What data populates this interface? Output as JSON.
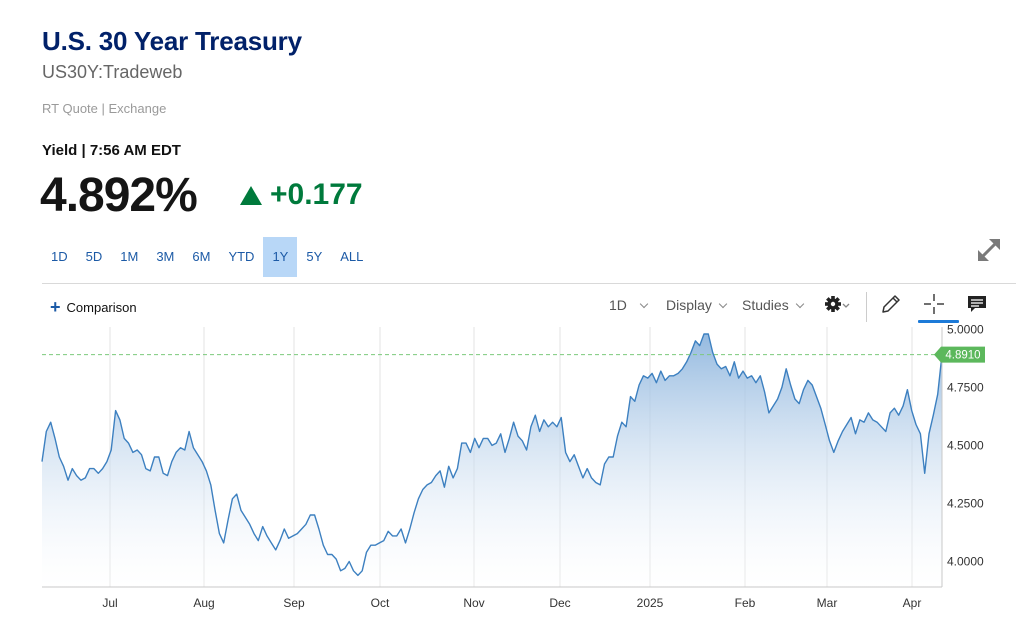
{
  "header": {
    "title": "U.S. 30 Year Treasury",
    "symbol": "US30Y:Tradeweb",
    "quote_type": "RT Quote | Exchange",
    "yield_label": "Yield | 7:56 AM EDT",
    "price": "4.892%",
    "change": "+0.177"
  },
  "ranges": [
    "1D",
    "5D",
    "1M",
    "3M",
    "6M",
    "YTD",
    "1Y",
    "5Y",
    "ALL"
  ],
  "active_range": "1Y",
  "toolbar": {
    "comparison": "Comparison",
    "interval": "1D",
    "display": "Display",
    "studies": "Studies"
  },
  "colors": {
    "title": "#012169",
    "up": "#007a3c",
    "line": "#3d80c0",
    "last_price_badge": "#5cb85c",
    "active_range_bg": "#b8d7f7"
  },
  "chart_data": {
    "type": "area",
    "x_ticks": [
      "Jul",
      "Aug",
      "Sep",
      "Oct",
      "Nov",
      "Dec",
      "2025",
      "Feb",
      "Mar",
      "Apr"
    ],
    "y_ticks": [
      "4.0000",
      "4.2500",
      "4.5000",
      "4.7500",
      "5.0000"
    ],
    "ylim": [
      3.89,
      5.01
    ],
    "last_value": 4.891,
    "last_label": "4.8910",
    "grid": "vertical",
    "series": [
      {
        "values": [
          4.43,
          4.56,
          4.6,
          4.53,
          4.45,
          4.41,
          4.35,
          4.4,
          4.37,
          4.35,
          4.36,
          4.4,
          4.4,
          4.38,
          4.4,
          4.43,
          4.48,
          4.65,
          4.61,
          4.53,
          4.51,
          4.47,
          4.48,
          4.46,
          4.4,
          4.39,
          4.45,
          4.45,
          4.38,
          4.37,
          4.43,
          4.47,
          4.49,
          4.48,
          4.56,
          4.49,
          4.46,
          4.43,
          4.39,
          4.33,
          4.22,
          4.12,
          4.08,
          4.18,
          4.27,
          4.29,
          4.22,
          4.19,
          4.16,
          4.12,
          4.09,
          4.15,
          4.11,
          4.08,
          4.05,
          4.09,
          4.14,
          4.1,
          4.11,
          4.12,
          4.14,
          4.16,
          4.2,
          4.2,
          4.14,
          4.07,
          4.03,
          4.03,
          4.01,
          3.96,
          3.97,
          4.0,
          3.96,
          3.94,
          3.96,
          4.04,
          4.07,
          4.07,
          4.08,
          4.09,
          4.13,
          4.11,
          4.11,
          4.14,
          4.08,
          4.14,
          4.21,
          4.27,
          4.31,
          4.33,
          4.34,
          4.37,
          4.39,
          4.32,
          4.41,
          4.36,
          4.4,
          4.51,
          4.51,
          4.47,
          4.53,
          4.49,
          4.53,
          4.53,
          4.5,
          4.51,
          4.55,
          4.47,
          4.53,
          4.6,
          4.54,
          4.52,
          4.48,
          4.58,
          4.63,
          4.56,
          4.61,
          4.58,
          4.6,
          4.58,
          4.62,
          4.47,
          4.43,
          4.46,
          4.41,
          4.36,
          4.4,
          4.36,
          4.34,
          4.33,
          4.42,
          4.45,
          4.45,
          4.54,
          4.6,
          4.58,
          4.71,
          4.69,
          4.76,
          4.8,
          4.79,
          4.81,
          4.77,
          4.82,
          4.78,
          4.8,
          4.8,
          4.81,
          4.83,
          4.86,
          4.9,
          4.95,
          4.93,
          4.98,
          4.98,
          4.9,
          4.85,
          4.83,
          4.84,
          4.8,
          4.86,
          4.79,
          4.82,
          4.79,
          4.8,
          4.77,
          4.8,
          4.73,
          4.64,
          4.67,
          4.7,
          4.75,
          4.83,
          4.76,
          4.7,
          4.68,
          4.74,
          4.78,
          4.76,
          4.71,
          4.66,
          4.59,
          4.52,
          4.47,
          4.52,
          4.56,
          4.59,
          4.62,
          4.55,
          4.61,
          4.6,
          4.64,
          4.61,
          4.6,
          4.58,
          4.56,
          4.64,
          4.66,
          4.63,
          4.67,
          4.74,
          4.65,
          4.59,
          4.55,
          4.38,
          4.55,
          4.63,
          4.72,
          4.891
        ]
      }
    ]
  }
}
